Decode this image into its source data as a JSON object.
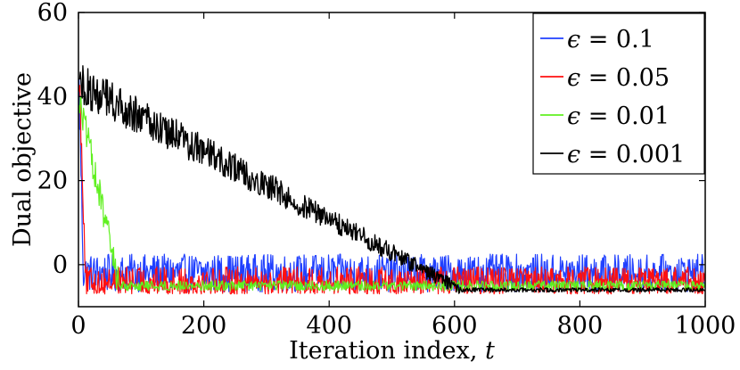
{
  "chart_data": {
    "type": "line",
    "title": "",
    "xlabel": "Iteration index, t",
    "ylabel": "Dual objective",
    "xlim": [
      0,
      1000
    ],
    "ylim": [
      -10,
      60
    ],
    "xticks": [
      0,
      200,
      400,
      600,
      800,
      1000
    ],
    "yticks": [
      0,
      20,
      40,
      60
    ],
    "xtick_labels": [
      "0",
      "200",
      "400",
      "600",
      "800",
      "1000"
    ],
    "ytick_labels": [
      "0",
      "20",
      "40",
      "60"
    ],
    "grid": false,
    "legend_position": "top-right",
    "series": [
      {
        "name": "ϵ = 0.1",
        "color": "#2040ff",
        "start_value": 48,
        "drop_end": 8,
        "floor": -7,
        "steady_mean": -2,
        "noise_amplitude": 4.5,
        "steady_from": 8
      },
      {
        "name": "ϵ = 0.05",
        "color": "#ff1010",
        "start_value": 50,
        "drop_end": 12,
        "floor": -7,
        "steady_mean": -4,
        "noise_amplitude": 3.5,
        "steady_from": 12
      },
      {
        "name": "ϵ = 0.01",
        "color": "#60f020",
        "start_value": 40,
        "drop_end": 65,
        "floor": -7,
        "steady_mean": -5,
        "noise_amplitude": 1.2,
        "steady_from": 65
      },
      {
        "name": "ϵ = 0.001",
        "color": "#000000",
        "start_value": 43,
        "drop_end": 610,
        "floor": -7,
        "steady_mean": -6,
        "noise_amplitude": 0.5,
        "steady_from": 610
      }
    ]
  }
}
